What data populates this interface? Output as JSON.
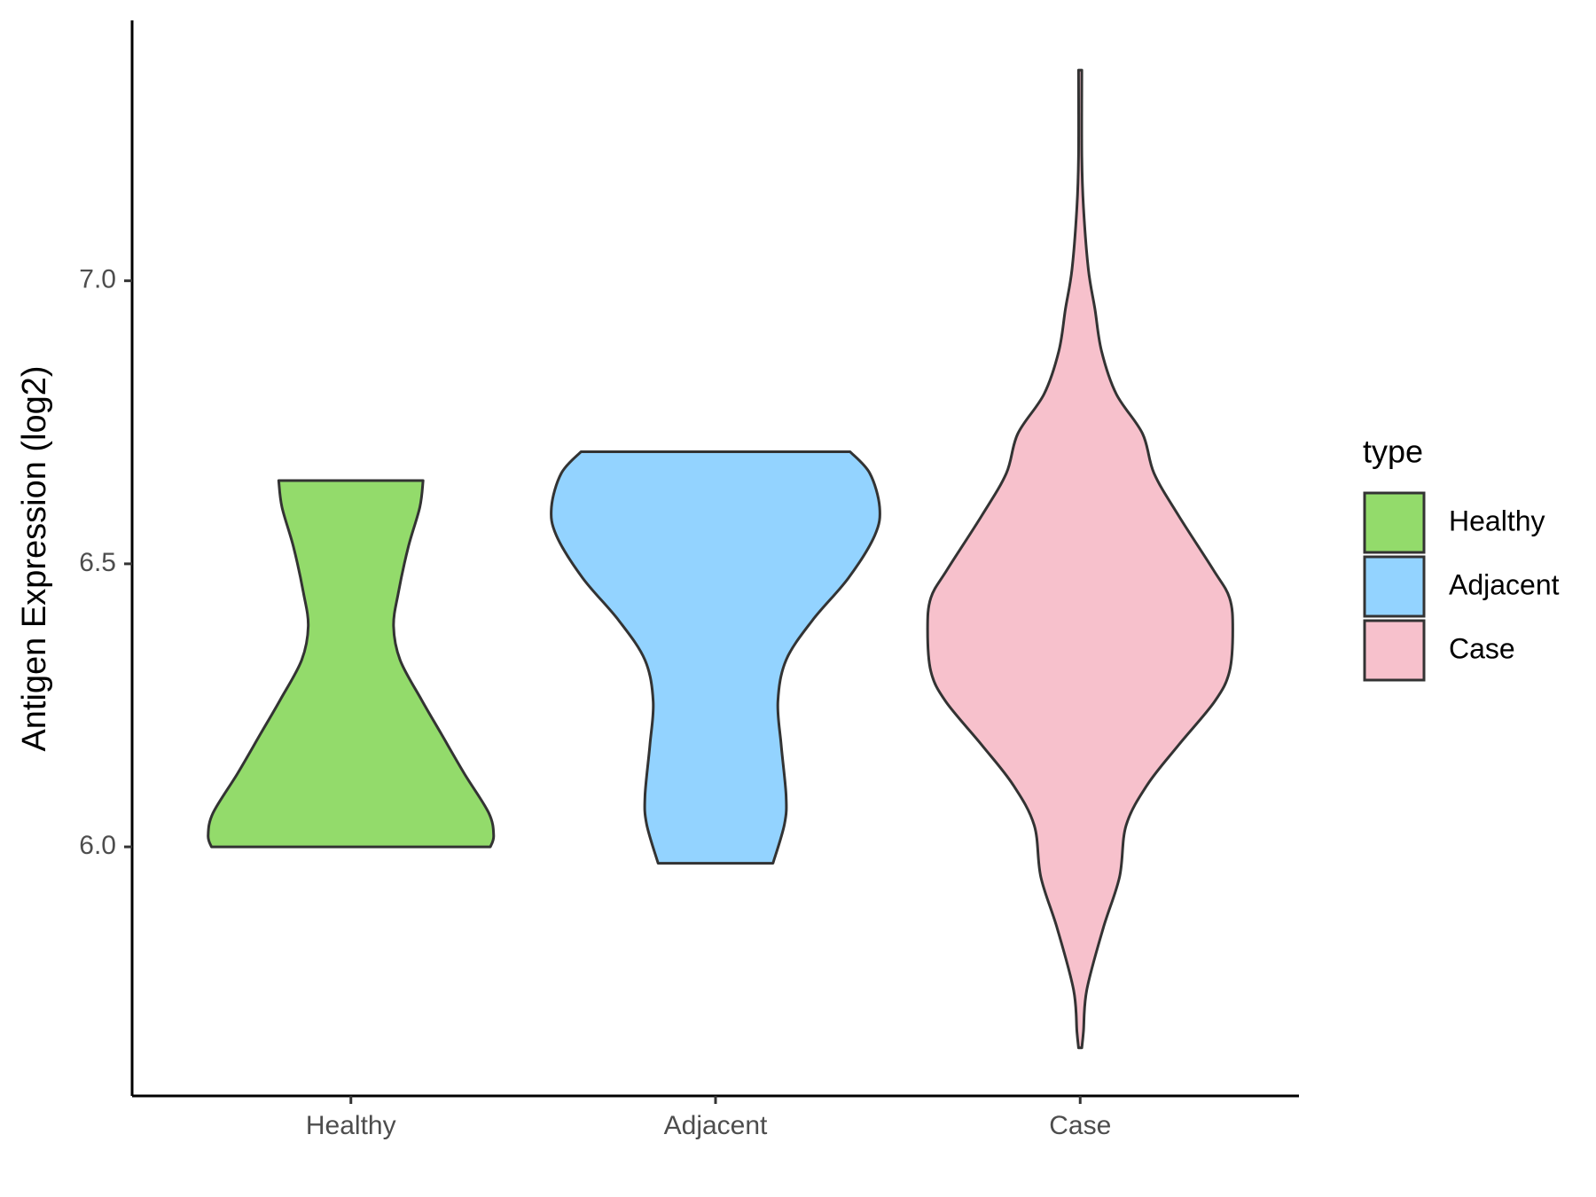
{
  "chart_data": {
    "type": "violin",
    "ylabel": "Antigen Expression (log2)",
    "categories": [
      "Healthy",
      "Adjacent",
      "Case"
    ],
    "legend_title": "type",
    "legend": "right",
    "ylim": [
      5.56,
      7.46
    ],
    "yticks": [
      {
        "value": 6,
        "label": "6.0"
      },
      6.5,
      {
        "value": 7,
        "label": "7.0"
      }
    ],
    "series": [
      {
        "name": "Healthy",
        "color": "#93db6b",
        "y": [
          6.0,
          6.02,
          6.06,
          6.13,
          6.2,
          6.26,
          6.33,
          6.39,
          6.45,
          6.53,
          6.6,
          6.647
        ],
        "density": [
          0.85,
          0.87,
          0.84,
          0.69,
          0.55,
          0.43,
          0.3,
          0.26,
          0.29,
          0.35,
          0.42,
          0.44
        ]
      },
      {
        "name": "Adjacent",
        "color": "#93d3ff",
        "y": [
          5.971,
          6.04,
          6.09,
          6.18,
          6.257,
          6.33,
          6.4,
          6.475,
          6.55,
          6.6,
          6.66,
          6.698
        ],
        "density": [
          0.35,
          0.42,
          0.43,
          0.4,
          0.38,
          0.43,
          0.59,
          0.81,
          0.97,
          1.0,
          0.94,
          0.82
        ]
      },
      {
        "name": "Case",
        "color": "#f7c1cc",
        "y": [
          5.645,
          5.674,
          5.747,
          5.856,
          5.947,
          6.038,
          6.11,
          6.18,
          6.257,
          6.31,
          6.384,
          6.44,
          6.49,
          6.585,
          6.66,
          6.73,
          6.8,
          6.876,
          6.95,
          7.02,
          7.13,
          7.22,
          7.372
        ],
        "density": [
          0.01,
          0.02,
          0.04,
          0.14,
          0.24,
          0.28,
          0.41,
          0.6,
          0.82,
          0.91,
          0.93,
          0.91,
          0.81,
          0.6,
          0.45,
          0.38,
          0.22,
          0.13,
          0.09,
          0.05,
          0.02,
          0.01,
          0.01
        ]
      }
    ]
  }
}
